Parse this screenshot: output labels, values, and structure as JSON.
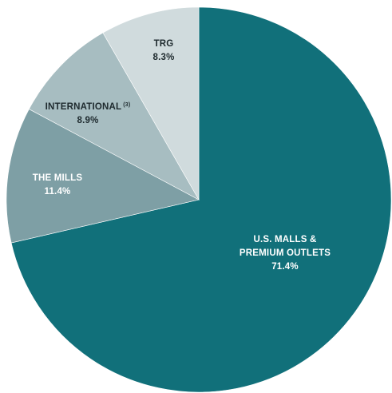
{
  "chart_data": {
    "type": "pie",
    "slices": [
      {
        "name": "U.S. MALLS & PREMIUM OUTLETS",
        "value": 71.4,
        "value_label": "71.4%",
        "color": "#11707A",
        "text_color": "#FFFFFF"
      },
      {
        "name": "THE MILLS",
        "value": 11.4,
        "value_label": "11.4%",
        "color": "#7E9FA5",
        "text_color": "#FFFFFF"
      },
      {
        "name": "INTERNATIONAL",
        "name_sup": "(3)",
        "value": 8.9,
        "value_label": "8.9%",
        "color": "#A7BDC1",
        "text_color": "#1E2A2E"
      },
      {
        "name": "TRG",
        "value": 8.3,
        "value_label": "8.3%",
        "color": "#D0DBDD",
        "text_color": "#1E2A2E"
      }
    ],
    "start": "12 o'clock",
    "direction": "clockwise"
  }
}
